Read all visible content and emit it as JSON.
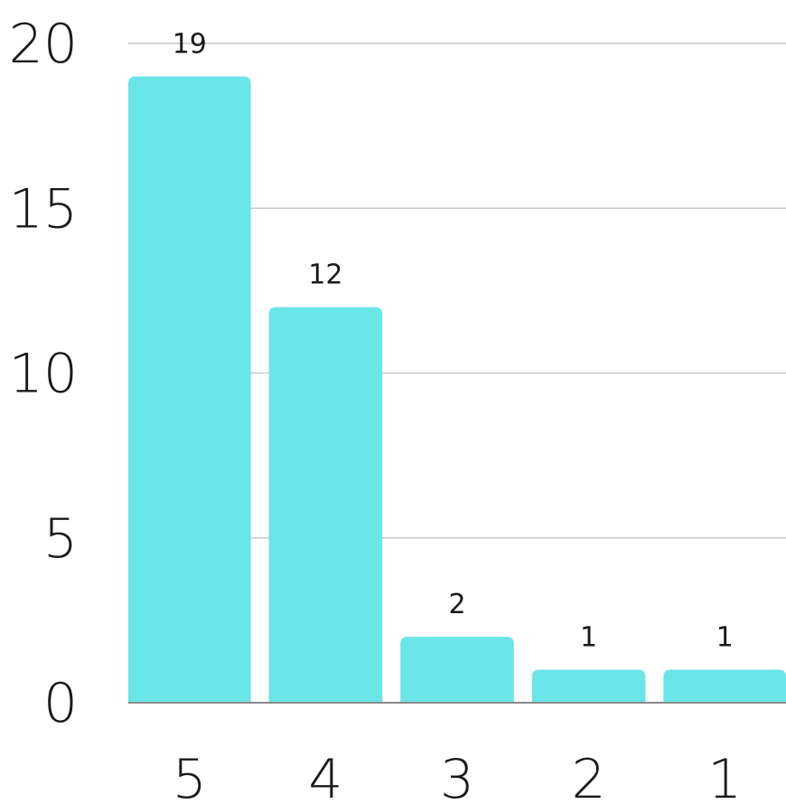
{
  "chart_data": {
    "type": "bar",
    "title": "",
    "xlabel": "",
    "ylabel": "",
    "categories": [
      "5",
      "4",
      "3",
      "2",
      "1"
    ],
    "values": [
      19,
      12,
      2,
      1,
      1
    ],
    "data_labels": [
      "19",
      "12",
      "2",
      "1",
      "1"
    ],
    "ylim": [
      0,
      20
    ],
    "yticks": [
      0,
      5,
      10,
      15,
      20
    ],
    "ytick_labels": [
      "0",
      "5",
      "10",
      "15",
      "20"
    ],
    "grid": true,
    "legend": "none",
    "colors": {
      "bar": "#6ae5e8",
      "grid": "#c9c9c9",
      "baseline": "#8a8a8a",
      "text": "#1a1a1a"
    }
  }
}
